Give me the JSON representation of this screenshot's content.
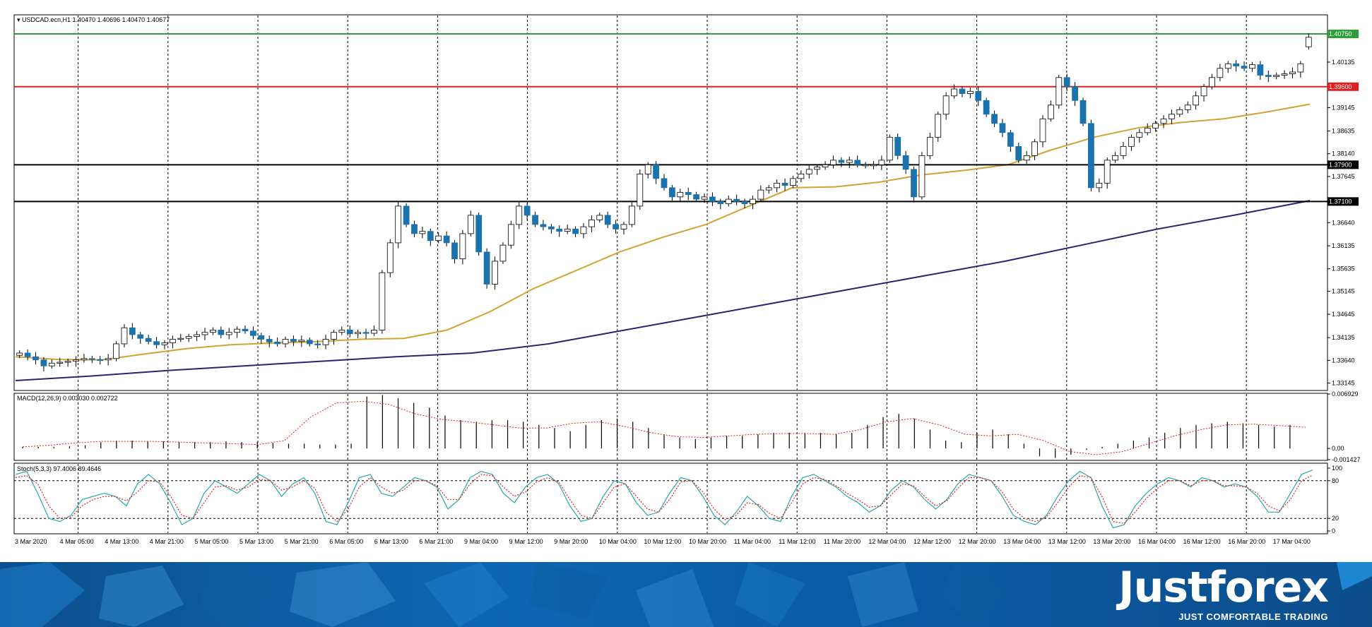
{
  "symbol_header": "USDCAD.ecn,H1  1.40470 1.40696 1.40470 1.40677",
  "macd_header": "MACD(12,26,9) 0.003030 0.002722",
  "stoch_header": "Stoch(5,3,3) 97.4006 89.4646",
  "brand": {
    "logo": "Justforex",
    "tagline": "JUST COMFORTABLE TRADING"
  },
  "colors": {
    "bull": "#ffffff",
    "bear": "#1a73ad",
    "ma_fast": "#d4a232",
    "ma_slow": "#2b2475",
    "green_level": "#2e9e3a",
    "red_level": "#e02020",
    "black_level": "#000000",
    "macd_signal": "#e02020",
    "stoch_main": "#2aa8a8",
    "stoch_signal": "#e02020"
  },
  "chart_data": [
    {
      "type": "candlestick",
      "title": "USDCAD.ecn,H1",
      "ohlc_last": {
        "open": 1.4047,
        "high": 1.40696,
        "low": 1.4047,
        "close": 1.40677
      },
      "ylim": [
        1.33,
        1.4115
      ],
      "yticks": [
        "1.40135",
        "1.39145",
        "1.38635",
        "1.38140",
        "1.37645",
        "1.36640",
        "1.36135",
        "1.35635",
        "1.35145",
        "1.34645",
        "1.34135",
        "1.33640",
        "1.33145"
      ],
      "xticks": [
        "3 Mar 2020",
        "4 Mar 05:00",
        "4 Mar 13:00",
        "4 Mar 21:00",
        "5 Mar 05:00",
        "5 Mar 13:00",
        "5 Mar 21:00",
        "6 Mar 05:00",
        "6 Mar 13:00",
        "6 Mar 21:00",
        "9 Mar 04:00",
        "9 Mar 12:00",
        "9 Mar 20:00",
        "10 Mar 04:00",
        "10 Mar 12:00",
        "10 Mar 20:00",
        "11 Mar 04:00",
        "11 Mar 12:00",
        "11 Mar 20:00",
        "12 Mar 04:00",
        "12 Mar 12:00",
        "12 Mar 20:00",
        "13 Mar 04:00",
        "13 Mar 12:00",
        "13 Mar 20:00",
        "16 Mar 04:00",
        "16 Mar 12:00",
        "16 Mar 20:00",
        "17 Mar 04:00"
      ],
      "levels": [
        {
          "price": 1.4075,
          "label": "1.40750",
          "color": "green"
        },
        {
          "price": 1.396,
          "label": "1.39600",
          "color": "red"
        },
        {
          "price": 1.379,
          "label": "1.37900",
          "color": "black"
        },
        {
          "price": 1.371,
          "label": "1.37100",
          "color": "black"
        }
      ],
      "series": [
        {
          "kind": "close_path",
          "values": [
            1.338,
            1.3372,
            1.3365,
            1.3352,
            1.3358,
            1.336,
            1.3362,
            1.3365,
            1.3368,
            1.3366,
            1.3365,
            1.3368,
            1.34,
            1.3435,
            1.342,
            1.3412,
            1.3405,
            1.3398,
            1.3402,
            1.341,
            1.3412,
            1.3416,
            1.342,
            1.3425,
            1.343,
            1.342,
            1.3425,
            1.3432,
            1.3428,
            1.3418,
            1.341,
            1.3404,
            1.34,
            1.341,
            1.3405,
            1.3408,
            1.34,
            1.3398,
            1.341,
            1.3425,
            1.343,
            1.3422,
            1.3425,
            1.3423,
            1.343,
            1.3555,
            1.362,
            1.37,
            1.366,
            1.364,
            1.3645,
            1.3625,
            1.3635,
            1.362,
            1.3585,
            1.364,
            1.368,
            1.36,
            1.353,
            1.358,
            1.3615,
            1.366,
            1.37,
            1.368,
            1.366,
            1.3655,
            1.365,
            1.3645,
            1.365,
            1.364,
            1.3655,
            1.367,
            1.368,
            1.366,
            1.365,
            1.366,
            1.37,
            1.377,
            1.379,
            1.376,
            1.374,
            1.372,
            1.373,
            1.3725,
            1.3715,
            1.372,
            1.371,
            1.3705,
            1.3715,
            1.371,
            1.3705,
            1.3715,
            1.3735,
            1.374,
            1.375,
            1.3745,
            1.376,
            1.377,
            1.378,
            1.3785,
            1.379,
            1.38,
            1.3795,
            1.38,
            1.379,
            1.379,
            1.379,
            1.38,
            1.385,
            1.381,
            1.378,
            1.372,
            1.381,
            1.385,
            1.39,
            1.394,
            1.3955,
            1.3945,
            1.395,
            1.393,
            1.39,
            1.388,
            1.386,
            1.383,
            1.38,
            1.381,
            1.384,
            1.389,
            1.392,
            1.398,
            1.396,
            1.393,
            1.388,
            1.374,
            1.375,
            1.38,
            1.381,
            1.383,
            1.385,
            1.386,
            1.387,
            1.388,
            1.389,
            1.39,
            1.391,
            1.392,
            1.394,
            1.396,
            1.398,
            1.4,
            1.401,
            1.4005,
            1.4,
            1.4008,
            1.3985,
            1.3982,
            1.3985,
            1.3988,
            1.3992,
            1.401,
            1.4068
          ]
        },
        {
          "name": "MA fast",
          "kind": "moving_average",
          "values": [
            1.3372,
            1.3366,
            1.3365,
            1.3378,
            1.339,
            1.3398,
            1.3402,
            1.3405,
            1.341,
            1.3412,
            1.343,
            1.347,
            1.352,
            1.356,
            1.36,
            1.3632,
            1.366,
            1.37,
            1.374,
            1.3742,
            1.3752,
            1.3768,
            1.3778,
            1.379,
            1.3822,
            1.385,
            1.387,
            1.3882,
            1.389,
            1.3905,
            1.3922
          ]
        },
        {
          "name": "MA slow",
          "kind": "moving_average",
          "values": [
            1.332,
            1.333,
            1.3342,
            1.3352,
            1.3362,
            1.3372,
            1.338,
            1.34,
            1.343,
            1.346,
            1.349,
            1.352,
            1.355,
            1.358,
            1.3615,
            1.365,
            1.368,
            1.3712
          ]
        }
      ]
    },
    {
      "type": "bar",
      "title": "MACD(12,26,9)",
      "values_current": {
        "macd": 0.00303,
        "signal": 0.002722
      },
      "ylim": [
        -0.001427,
        0.006929
      ],
      "yticks": [
        "0.006929",
        "0.00",
        "-0.001427"
      ],
      "series": [
        {
          "name": "MACD histogram",
          "values": [
            0.0002,
            0.0002,
            0.0002,
            0.0003,
            0.0004,
            0.0008,
            0.001,
            0.001,
            0.0009,
            0.0009,
            0.0008,
            0.0008,
            0.0008,
            0.0009,
            0.0008,
            0.0008,
            0.0007,
            0.0006,
            0.0006,
            0.0005,
            0.0005,
            0.0006,
            0.0066,
            0.0068,
            0.0064,
            0.0058,
            0.0052,
            0.0042,
            0.0036,
            0.0034,
            0.0036,
            0.0036,
            0.0034,
            0.003,
            0.0026,
            0.0022,
            0.003,
            0.0036,
            0.0038,
            0.0034,
            0.0026,
            0.0018,
            0.0014,
            0.0012,
            0.0014,
            0.0016,
            0.0016,
            0.0018,
            0.002,
            0.002,
            0.002,
            0.002,
            0.0018,
            0.002,
            0.003,
            0.004,
            0.0044,
            0.0038,
            0.0024,
            0.001,
            0.0008,
            0.002,
            0.0024,
            0.0018,
            0.0006,
            -0.001,
            -0.0012,
            -0.0008,
            -0.0002,
            0.0002,
            0.0006,
            0.001,
            0.0014,
            0.002,
            0.0026,
            0.003,
            0.0032,
            0.0034,
            0.0032,
            0.003,
            0.0028,
            0.003
          ]
        },
        {
          "name": "Signal",
          "values": [
            0.0002,
            0.0004,
            0.0007,
            0.0009,
            0.0009,
            0.0009,
            0.0008,
            0.0007,
            0.0006,
            0.0005,
            0.001,
            0.004,
            0.0058,
            0.006,
            0.0056,
            0.0044,
            0.0037,
            0.0034,
            0.003,
            0.0026,
            0.0026,
            0.0032,
            0.0034,
            0.0028,
            0.002,
            0.0015,
            0.0014,
            0.0016,
            0.0018,
            0.0019,
            0.0019,
            0.0018,
            0.0024,
            0.0034,
            0.0038,
            0.003,
            0.0018,
            0.0016,
            0.0018,
            0.001,
            -0.0004,
            -0.0008,
            -0.0004,
            0.0006,
            0.0016,
            0.0024,
            0.003,
            0.0031,
            0.0029,
            0.0027
          ]
        }
      ]
    },
    {
      "type": "line",
      "title": "Stoch(5,3,3)",
      "values_current": {
        "main": 97.4006,
        "signal": 89.4646
      },
      "ylim": [
        0,
        100
      ],
      "yticks": [
        "100",
        "80",
        "20",
        "0"
      ],
      "series": [
        {
          "name": "Main",
          "values": [
            90,
            95,
            60,
            20,
            15,
            25,
            50,
            55,
            60,
            55,
            40,
            75,
            90,
            75,
            45,
            10,
            20,
            60,
            80,
            70,
            60,
            75,
            90,
            80,
            55,
            75,
            85,
            60,
            15,
            10,
            45,
            85,
            90,
            60,
            55,
            70,
            85,
            80,
            70,
            35,
            50,
            85,
            95,
            90,
            60,
            45,
            70,
            85,
            90,
            75,
            40,
            15,
            20,
            55,
            80,
            75,
            45,
            25,
            30,
            60,
            85,
            80,
            55,
            25,
            10,
            30,
            55,
            40,
            20,
            15,
            55,
            85,
            90,
            80,
            70,
            55,
            45,
            30,
            40,
            65,
            80,
            70,
            50,
            35,
            50,
            75,
            90,
            85,
            80,
            55,
            25,
            15,
            10,
            25,
            55,
            80,
            95,
            85,
            40,
            5,
            10,
            40,
            60,
            75,
            85,
            80,
            70,
            85,
            80,
            70,
            75,
            70,
            55,
            30,
            30,
            60,
            90,
            97
          ]
        },
        {
          "name": "Signal",
          "values": [
            85,
            88,
            75,
            40,
            20,
            22,
            40,
            50,
            55,
            55,
            48,
            62,
            80,
            78,
            55,
            25,
            20,
            45,
            70,
            72,
            65,
            70,
            82,
            80,
            65,
            70,
            80,
            68,
            30,
            15,
            35,
            70,
            85,
            70,
            60,
            65,
            80,
            80,
            72,
            50,
            50,
            75,
            90,
            88,
            70,
            55,
            62,
            78,
            85,
            78,
            50,
            25,
            20,
            45,
            70,
            75,
            55,
            35,
            30,
            50,
            78,
            80,
            62,
            35,
            18,
            25,
            45,
            42,
            28,
            20,
            45,
            75,
            85,
            82,
            72,
            60,
            50,
            38,
            40,
            58,
            75,
            72,
            55,
            40,
            48,
            68,
            85,
            85,
            80,
            62,
            35,
            20,
            15,
            22,
            45,
            70,
            88,
            85,
            55,
            15,
            12,
            30,
            52,
            68,
            80,
            80,
            72,
            80,
            80,
            72,
            72,
            70,
            60,
            40,
            32,
            50,
            80,
            89
          ]
        }
      ]
    }
  ]
}
